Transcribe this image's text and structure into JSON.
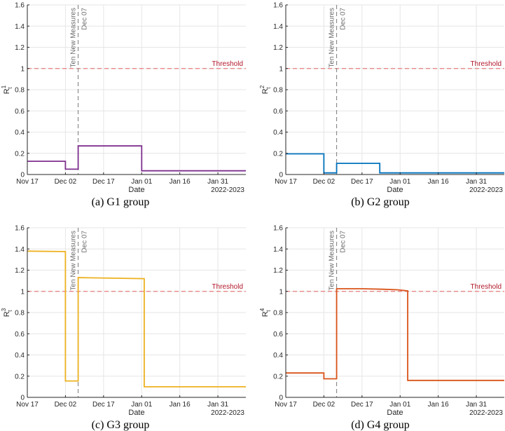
{
  "chart_data": [
    {
      "type": "line",
      "panel": "a",
      "caption": "(a)  G1 group",
      "ylabel_main": "R",
      "ylabel_sup": "1",
      "ylabel_sub": "t",
      "xlabel": "Date",
      "year_label": "2022-2023",
      "x_ticks": [
        "Nov 17",
        "Dec 02",
        "Dec 17",
        "Jan 01",
        "Jan 16",
        "Jan 31"
      ],
      "x_tick_days": [
        0,
        15,
        30,
        45,
        60,
        75
      ],
      "xlim": [
        0,
        86
      ],
      "ylim": [
        0,
        1.6
      ],
      "y_ticks": [
        "0",
        "0.2",
        "0.4",
        "0.6",
        "0.8",
        "1",
        "1.2",
        "1.4",
        "1.6"
      ],
      "threshold": 1,
      "threshold_label": "Threshold",
      "event_day": 20,
      "event_label_1": "Ten New Measures",
      "event_label_2": "Dec 07",
      "color": "#7e2f8e",
      "series": [
        {
          "name": "R1",
          "x": [
            0,
            15,
            15,
            20,
            20,
            45,
            45,
            86
          ],
          "y": [
            0.125,
            0.125,
            0.05,
            0.05,
            0.27,
            0.27,
            0.035,
            0.035
          ]
        }
      ]
    },
    {
      "type": "line",
      "panel": "b",
      "caption": "(b)  G2 group",
      "ylabel_main": "R",
      "ylabel_sup": "2",
      "ylabel_sub": "t",
      "xlabel": "Date",
      "year_label": "2022-2023",
      "x_ticks": [
        "Nov 17",
        "Dec 02",
        "Dec 17",
        "Jan 01",
        "Jan 16",
        "Jan 31"
      ],
      "x_tick_days": [
        0,
        15,
        30,
        45,
        60,
        75
      ],
      "xlim": [
        0,
        86
      ],
      "ylim": [
        0,
        1.6
      ],
      "y_ticks": [
        "0",
        "0.2",
        "0.4",
        "0.6",
        "0.8",
        "1",
        "1.2",
        "1.4",
        "1.6"
      ],
      "threshold": 1,
      "threshold_label": "Threshold",
      "event_day": 20,
      "event_label_1": "Ten New Measures",
      "event_label_2": "Dec 07",
      "color": "#0072bd",
      "series": [
        {
          "name": "R2",
          "x": [
            0,
            15,
            15,
            20,
            20,
            37,
            37,
            86
          ],
          "y": [
            0.195,
            0.195,
            0.015,
            0.015,
            0.105,
            0.105,
            0.015,
            0.015
          ]
        }
      ]
    },
    {
      "type": "line",
      "panel": "c",
      "caption": "(c)  G3 group",
      "ylabel_main": "R",
      "ylabel_sup": "3",
      "ylabel_sub": "t",
      "xlabel": "Date",
      "year_label": "2022-2023",
      "x_ticks": [
        "Nov 17",
        "Dec 02",
        "Dec 17",
        "Jan 01",
        "Jan 16",
        "Jan 31"
      ],
      "x_tick_days": [
        0,
        15,
        30,
        45,
        60,
        75
      ],
      "xlim": [
        0,
        86
      ],
      "ylim": [
        0,
        1.6
      ],
      "y_ticks": [
        "0",
        "0.2",
        "0.4",
        "0.6",
        "0.8",
        "1",
        "1.2",
        "1.4",
        "1.6"
      ],
      "threshold": 1,
      "threshold_label": "Threshold",
      "event_day": 20,
      "event_label_1": "Ten New Measures",
      "event_label_2": "Dec 07",
      "color": "#edb120",
      "series": [
        {
          "name": "R3",
          "x": [
            0,
            15,
            15,
            20,
            20,
            46,
            46,
            86
          ],
          "y": [
            1.38,
            1.375,
            0.155,
            0.155,
            1.13,
            1.12,
            0.1,
            0.1
          ]
        }
      ]
    },
    {
      "type": "line",
      "panel": "d",
      "caption": "(d)  G4 group",
      "ylabel_main": "R",
      "ylabel_sup": "4",
      "ylabel_sub": "t",
      "xlabel": "Date",
      "year_label": "2022-2023",
      "x_ticks": [
        "Nov 17",
        "Dec 02",
        "Dec 17",
        "Jan 01",
        "Jan 16",
        "Jan 31"
      ],
      "x_tick_days": [
        0,
        15,
        30,
        45,
        60,
        75
      ],
      "xlim": [
        0,
        86
      ],
      "ylim": [
        0,
        1.6
      ],
      "y_ticks": [
        "0",
        "0.2",
        "0.4",
        "0.6",
        "0.8",
        "1",
        "1.2",
        "1.4",
        "1.6"
      ],
      "threshold": 1,
      "threshold_label": "Threshold",
      "event_day": 20,
      "event_label_1": "Ten New Measures",
      "event_label_2": "Dec 07",
      "color": "#d95319",
      "series": [
        {
          "name": "R4",
          "x": [
            0,
            15,
            15,
            20,
            20,
            30,
            38,
            44,
            48,
            48,
            86
          ],
          "y": [
            0.23,
            0.23,
            0.175,
            0.175,
            1.025,
            1.025,
            1.02,
            1.015,
            1.005,
            0.16,
            0.16
          ]
        }
      ]
    }
  ]
}
